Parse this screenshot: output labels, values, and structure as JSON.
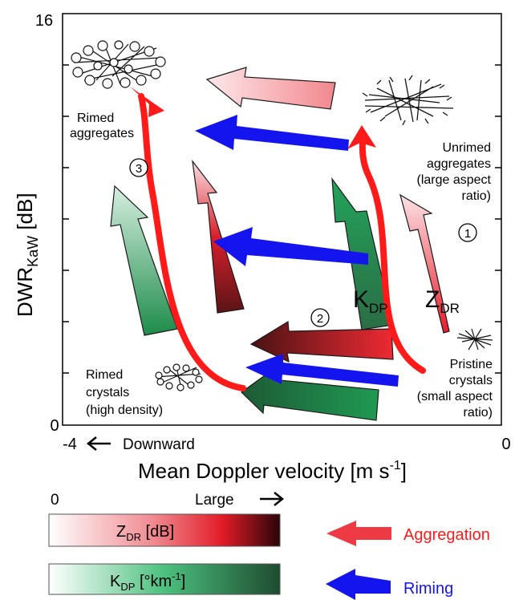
{
  "axes": {
    "y_label_main": "DWR",
    "y_label_sub": "KaW",
    "y_label_unit": " [dB]",
    "y_max_tick": "16",
    "y_min_tick": "0",
    "x_left_tick": "-4",
    "x_right_tick": "0",
    "x_arrow_text": "Downward",
    "x_label_main": "Mean Doppler velocity [m s",
    "x_label_sup": "-1",
    "x_label_end": "]"
  },
  "labels": {
    "rimed_agg_1": "Rimed",
    "rimed_agg_2": "aggregates",
    "unrimed_1": "Unrimed",
    "unrimed_2": "aggregates",
    "unrimed_3": "(large aspect",
    "unrimed_4": "ratio)",
    "pristine_1": "Pristine",
    "pristine_2": "crystals",
    "pristine_3": "(small aspect",
    "pristine_4": "ratio)",
    "rimed_cr_1": "Rimed",
    "rimed_cr_2": "crystals",
    "rimed_cr_3": "(high density)",
    "num_1": "1",
    "num_2": "2",
    "num_3": "3",
    "kdp_main": "K",
    "kdp_sub": "DP",
    "zdr_main": "Z",
    "zdr_sub": "DR"
  },
  "legend": {
    "scale_min": "0",
    "scale_max": "Large",
    "zdr_main": "Z",
    "zdr_sub": "DR",
    "zdr_unit": " [dB]",
    "kdp_main": "K",
    "kdp_sub": "DP",
    "kdp_unit": " [°km",
    "kdp_sup": "-1",
    "kdp_end": "]",
    "aggregation": "Aggregation",
    "riming": "Riming"
  },
  "colors": {
    "red": "#ff2020",
    "blue": "#1010ee",
    "green": "#1e8a4a",
    "dark_red": "#3a0a0a",
    "dark_green": "#1e4a30",
    "legend_red": "#ee3a3a"
  }
}
